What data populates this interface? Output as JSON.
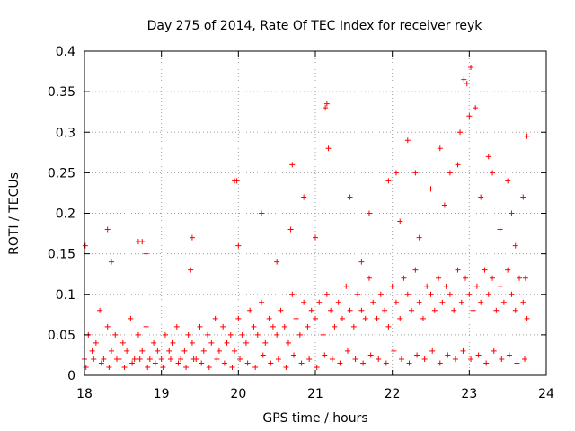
{
  "chart_data": {
    "type": "scatter",
    "title": "Day 275 of 2014, Rate Of TEC Index for receiver reyk",
    "xlabel": "GPS time / hours",
    "ylabel": "ROTI / TECUs",
    "xlim": [
      18,
      24
    ],
    "ylim": [
      0,
      0.4
    ],
    "x_ticks": [
      18,
      19,
      20,
      21,
      22,
      23,
      24
    ],
    "y_ticks": [
      0,
      0.05,
      0.1,
      0.15,
      0.2,
      0.25,
      0.3,
      0.35,
      0.4
    ],
    "y_tick_labels": [
      "0",
      "0.05",
      "0.1",
      "0.15",
      "0.2",
      "0.25",
      "0.3",
      "0.35",
      "0.4"
    ],
    "grid": true,
    "marker": "+",
    "marker_color": "#ff0000",
    "series": [
      {
        "name": "ROTI",
        "x": [
          18.0,
          18.05,
          18.1,
          18.15,
          18.2,
          18.25,
          18.3,
          18.35,
          18.4,
          18.45,
          18.5,
          18.55,
          18.6,
          18.65,
          18.7,
          18.75,
          18.8,
          18.85,
          18.9,
          18.95,
          19.0,
          19.05,
          19.1,
          19.15,
          19.2,
          19.25,
          19.3,
          19.35,
          19.4,
          19.45,
          19.5,
          19.55,
          19.6,
          19.65,
          19.7,
          19.75,
          19.8,
          19.85,
          19.9,
          19.95,
          20.0,
          20.05,
          20.1,
          20.15,
          20.2,
          20.25,
          20.3,
          20.35,
          20.4,
          20.45,
          20.5,
          20.55,
          20.6,
          20.65,
          20.7,
          20.75,
          20.8,
          20.85,
          20.9,
          20.95,
          21.0,
          21.05,
          21.1,
          21.15,
          21.2,
          21.25,
          21.3,
          21.35,
          21.4,
          21.45,
          21.5,
          21.55,
          21.6,
          21.65,
          21.7,
          21.75,
          21.8,
          21.85,
          21.9,
          21.95,
          22.0,
          22.05,
          22.1,
          22.15,
          22.2,
          22.25,
          22.3,
          22.35,
          22.4,
          22.45,
          22.5,
          22.55,
          22.6,
          22.65,
          22.7,
          22.75,
          22.8,
          22.85,
          22.9,
          22.95,
          23.0,
          23.05,
          23.1,
          23.15,
          23.2,
          23.25,
          23.3,
          23.35,
          23.4,
          23.45,
          23.5,
          23.55,
          23.6,
          23.65,
          23.7,
          23.75,
          18.02,
          18.12,
          18.22,
          18.32,
          18.42,
          18.52,
          18.62,
          18.72,
          18.82,
          18.92,
          19.02,
          19.12,
          19.22,
          19.32,
          19.42,
          19.52,
          19.62,
          19.72,
          19.82,
          19.92,
          20.02,
          20.12,
          20.22,
          20.32,
          20.42,
          20.52,
          20.62,
          20.72,
          20.82,
          20.92,
          21.02,
          21.12,
          21.22,
          21.32,
          21.42,
          21.52,
          21.62,
          21.72,
          21.82,
          21.92,
          22.02,
          22.12,
          22.22,
          22.32,
          22.42,
          22.52,
          22.62,
          22.72,
          22.82,
          22.92,
          23.02,
          23.12,
          23.22,
          23.32,
          23.42,
          23.52,
          23.62,
          23.72,
          18.01,
          18.3,
          18.75,
          19.4,
          19.95,
          19.98,
          20.3,
          20.7,
          20.85,
          21.15,
          21.13,
          21.45,
          21.7,
          21.95,
          22.05,
          22.2,
          22.3,
          22.5,
          22.62,
          22.75,
          22.85,
          22.93,
          22.97,
          23.0,
          23.02,
          23.08,
          23.25,
          23.3,
          23.5,
          23.55,
          23.7,
          23.75,
          18.35,
          18.7,
          18.8,
          19.38,
          20.0,
          20.5,
          20.68,
          21.0,
          21.17,
          21.6,
          22.1,
          22.35,
          22.68,
          22.88,
          23.15,
          23.4,
          23.6,
          23.73
        ],
        "y": [
          0.02,
          0.05,
          0.03,
          0.04,
          0.08,
          0.02,
          0.06,
          0.03,
          0.05,
          0.02,
          0.04,
          0.03,
          0.07,
          0.02,
          0.05,
          0.03,
          0.06,
          0.02,
          0.04,
          0.03,
          0.02,
          0.05,
          0.03,
          0.04,
          0.06,
          0.02,
          0.03,
          0.05,
          0.04,
          0.02,
          0.06,
          0.03,
          0.05,
          0.04,
          0.07,
          0.03,
          0.06,
          0.04,
          0.05,
          0.03,
          0.07,
          0.05,
          0.04,
          0.08,
          0.06,
          0.05,
          0.09,
          0.04,
          0.07,
          0.06,
          0.05,
          0.08,
          0.06,
          0.04,
          0.1,
          0.07,
          0.05,
          0.09,
          0.06,
          0.08,
          0.07,
          0.09,
          0.05,
          0.1,
          0.08,
          0.06,
          0.09,
          0.07,
          0.11,
          0.08,
          0.06,
          0.1,
          0.08,
          0.07,
          0.12,
          0.09,
          0.07,
          0.1,
          0.08,
          0.06,
          0.11,
          0.09,
          0.07,
          0.12,
          0.1,
          0.08,
          0.13,
          0.09,
          0.07,
          0.11,
          0.1,
          0.08,
          0.12,
          0.09,
          0.11,
          0.1,
          0.08,
          0.13,
          0.09,
          0.12,
          0.1,
          0.08,
          0.11,
          0.09,
          0.13,
          0.1,
          0.12,
          0.08,
          0.11,
          0.09,
          0.13,
          0.1,
          0.08,
          0.12,
          0.09,
          0.07,
          0.01,
          0.02,
          0.015,
          0.01,
          0.02,
          0.01,
          0.015,
          0.02,
          0.01,
          0.015,
          0.01,
          0.02,
          0.015,
          0.01,
          0.02,
          0.015,
          0.01,
          0.02,
          0.015,
          0.01,
          0.02,
          0.015,
          0.01,
          0.025,
          0.015,
          0.02,
          0.01,
          0.025,
          0.015,
          0.02,
          0.01,
          0.025,
          0.02,
          0.015,
          0.03,
          0.02,
          0.015,
          0.025,
          0.02,
          0.015,
          0.03,
          0.02,
          0.015,
          0.025,
          0.02,
          0.03,
          0.015,
          0.025,
          0.02,
          0.03,
          0.02,
          0.025,
          0.015,
          0.03,
          0.02,
          0.025,
          0.015,
          0.02,
          0.16,
          0.18,
          0.165,
          0.17,
          0.24,
          0.24,
          0.2,
          0.26,
          0.22,
          0.335,
          0.33,
          0.22,
          0.2,
          0.24,
          0.25,
          0.29,
          0.25,
          0.23,
          0.28,
          0.25,
          0.26,
          0.365,
          0.36,
          0.32,
          0.38,
          0.33,
          0.27,
          0.25,
          0.24,
          0.2,
          0.22,
          0.295,
          0.14,
          0.165,
          0.15,
          0.13,
          0.16,
          0.14,
          0.18,
          0.17,
          0.28,
          0.14,
          0.19,
          0.17,
          0.21,
          0.3,
          0.22,
          0.18,
          0.16,
          0.12
        ]
      }
    ]
  }
}
